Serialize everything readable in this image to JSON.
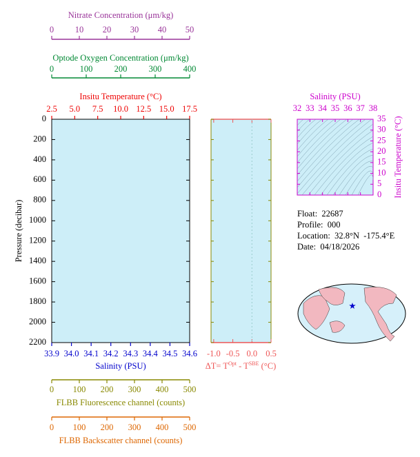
{
  "chart_data": [
    {
      "type": "profile",
      "ylabel": "Pressure (decibar)",
      "ylim": [
        0,
        2200
      ],
      "yticks": [
        0,
        200,
        400,
        600,
        800,
        1000,
        1200,
        1400,
        1600,
        1800,
        2000,
        2200
      ],
      "axes": [
        {
          "label": "Nitrate Concentration (μm/kg)",
          "xlim": [
            0,
            50
          ],
          "xticks": [
            0,
            10,
            20,
            30,
            40,
            50
          ],
          "color": "#993399"
        },
        {
          "label": "Optode Oxygen Concentration (μm/kg)",
          "xlim": [
            0,
            400
          ],
          "xticks": [
            0,
            100,
            200,
            300,
            400
          ],
          "color": "#008833"
        },
        {
          "label": "Insitu Temperature (°C)",
          "xlim": [
            2.5,
            17.5
          ],
          "xticks": [
            2.5,
            {
              "value": 5,
              "label": "5.0"
            },
            7.5,
            {
              "value": 10,
              "label": "10.0"
            },
            12.5,
            {
              "value": 15,
              "label": "15.0"
            },
            17.5
          ],
          "color": "#ee0000"
        },
        {
          "label": "Salinity (PSU)",
          "xlim": [
            33.9,
            34.6
          ],
          "xticks": [
            33.9,
            {
              "value": 34,
              "label": "34.0"
            },
            34.1,
            34.2,
            34.3,
            34.4,
            34.5,
            34.6
          ],
          "color": "#0000cc"
        },
        {
          "label": "FLBB Fluorescence channel (counts)",
          "xlim": [
            0,
            500
          ],
          "xticks": [
            0,
            100,
            200,
            300,
            400,
            500
          ],
          "color": "#888800"
        },
        {
          "label": "FLBB Backscatter channel (counts)",
          "xlim": [
            0,
            500
          ],
          "xticks": [
            0,
            100,
            200,
            300,
            400,
            500
          ],
          "color": "#dd6600"
        }
      ]
    },
    {
      "type": "difference",
      "xlabel": [
        "ΔT= T",
        "Opt",
        " - T",
        "SBE",
        " (°C)"
      ],
      "xlim": [
        -1.07,
        0.5
      ],
      "xticks": [
        {
          "value": -1,
          "label": "-1.0"
        },
        -0.5,
        {
          "value": 0,
          "label": "0.0"
        },
        0.5
      ],
      "color": "#ee5555"
    },
    {
      "type": "ts",
      "xlabel": "Salinity (PSU)",
      "xlim": [
        32,
        38
      ],
      "xticks": [
        32,
        33,
        34,
        35,
        36,
        37,
        38
      ],
      "ylabel": "Insitu Temperature (°C)",
      "ylim": [
        0,
        35
      ],
      "yticks": [
        0,
        5,
        10,
        15,
        20,
        25,
        30,
        35
      ],
      "color": "#cc00cc"
    }
  ],
  "info": {
    "lines": [
      "Float:  22687",
      "Profile:  000",
      "Location:  32.8°N  -175.4°E",
      "Date:  04/18/2026"
    ]
  }
}
